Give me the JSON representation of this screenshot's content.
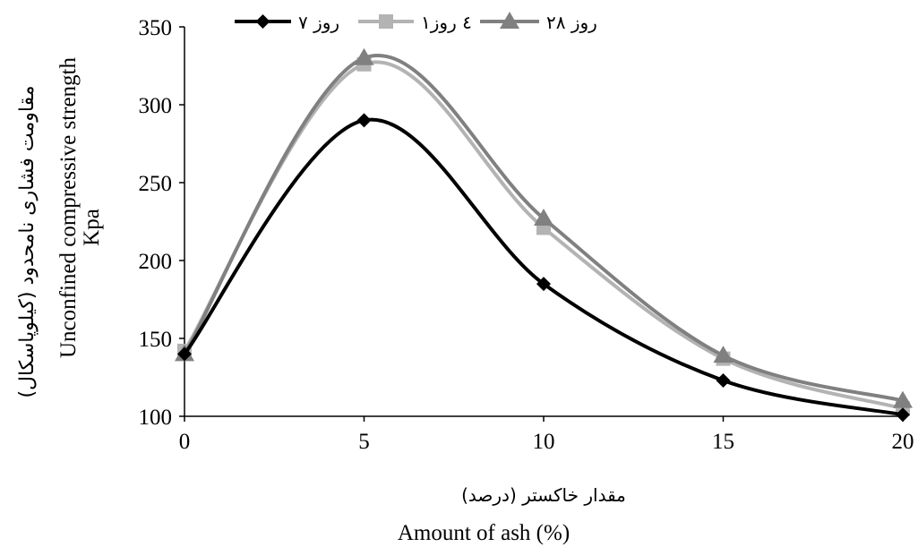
{
  "chart_data": {
    "type": "line",
    "x": [
      0,
      5,
      10,
      15,
      20
    ],
    "series": [
      {
        "name": "۷ روز",
        "values": [
          140,
          290,
          185,
          123,
          101
        ],
        "color": "#000000",
        "marker": "diamond"
      },
      {
        "name": "۱٤ روز",
        "values": [
          142,
          326,
          221,
          137,
          105
        ],
        "color": "#b3b3b3",
        "marker": "square"
      },
      {
        "name": "۲۸ روز",
        "values": [
          140,
          330,
          227,
          139,
          110
        ],
        "color": "#808080",
        "marker": "triangle"
      }
    ],
    "xlim": [
      0,
      20
    ],
    "ylim": [
      100,
      350
    ],
    "x_ticks": [
      "0",
      "5",
      "10",
      "15",
      "20"
    ],
    "y_ticks": [
      "100",
      "150",
      "200",
      "250",
      "300",
      "350"
    ],
    "xlabel_fa": "مقدار خاکستر (درصد)",
    "xlabel_en": "Amount of ash (%)",
    "ylabel_fa": "مقاومت فشاری نامحدود (کیلوپاسکال)",
    "ylabel_en": "Unconfined compressive strength",
    "ylabel_unit": "Kpa",
    "legend_position": "top",
    "grid": false
  }
}
